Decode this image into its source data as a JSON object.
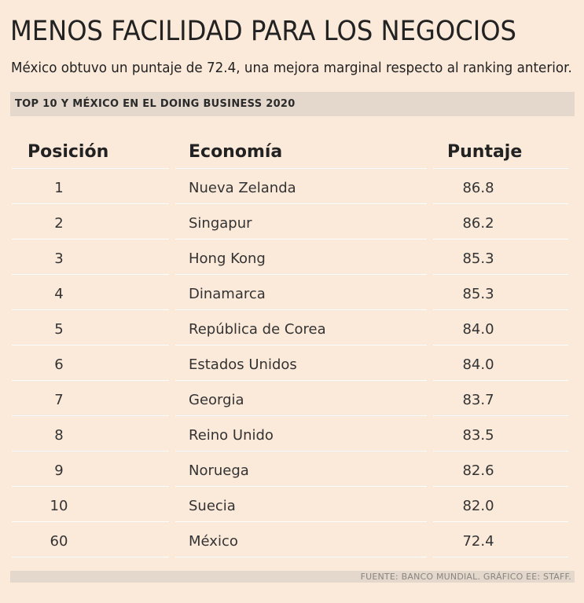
{
  "header": {
    "title": "MENOS FACILIDAD PARA LOS NEGOCIOS",
    "subtitle": "México obtuvo un puntaje de 72.4, una mejora marginal respecto al ranking anterior.",
    "section_label": "TOP 10 Y MÉXICO EN EL DOING BUSINESS 2020"
  },
  "footer": {
    "source": "FUENTE: BANCO MUNDIAL.  GRÁFICO EE: STAFF."
  },
  "colors": {
    "background": "#fbe9d9",
    "bar": "#e4d8cc",
    "text": "#222222"
  },
  "chart_data": {
    "type": "table",
    "title": "MENOS FACILIDAD PARA LOS NEGOCIOS",
    "subtitle": "México obtuvo un puntaje de 72.4, una mejora marginal respecto al ranking anterior.",
    "columns": [
      "Posición",
      "Economía",
      "Puntaje"
    ],
    "rows": [
      [
        "1",
        "Nueva Zelanda",
        "86.8"
      ],
      [
        "2",
        "Singapur",
        "86.2"
      ],
      [
        "3",
        "Hong Kong",
        "85.3"
      ],
      [
        "4",
        "Dinamarca",
        "85.3"
      ],
      [
        "5",
        "República de Corea",
        "84.0"
      ],
      [
        "6",
        "Estados Unidos",
        "84.0"
      ],
      [
        "7",
        "Georgia",
        "83.7"
      ],
      [
        "8",
        "Reino Unido",
        "83.5"
      ],
      [
        "9",
        "Noruega",
        "82.6"
      ],
      [
        "10",
        "Suecia",
        "82.0"
      ],
      [
        "60",
        "México",
        "72.4"
      ]
    ]
  }
}
